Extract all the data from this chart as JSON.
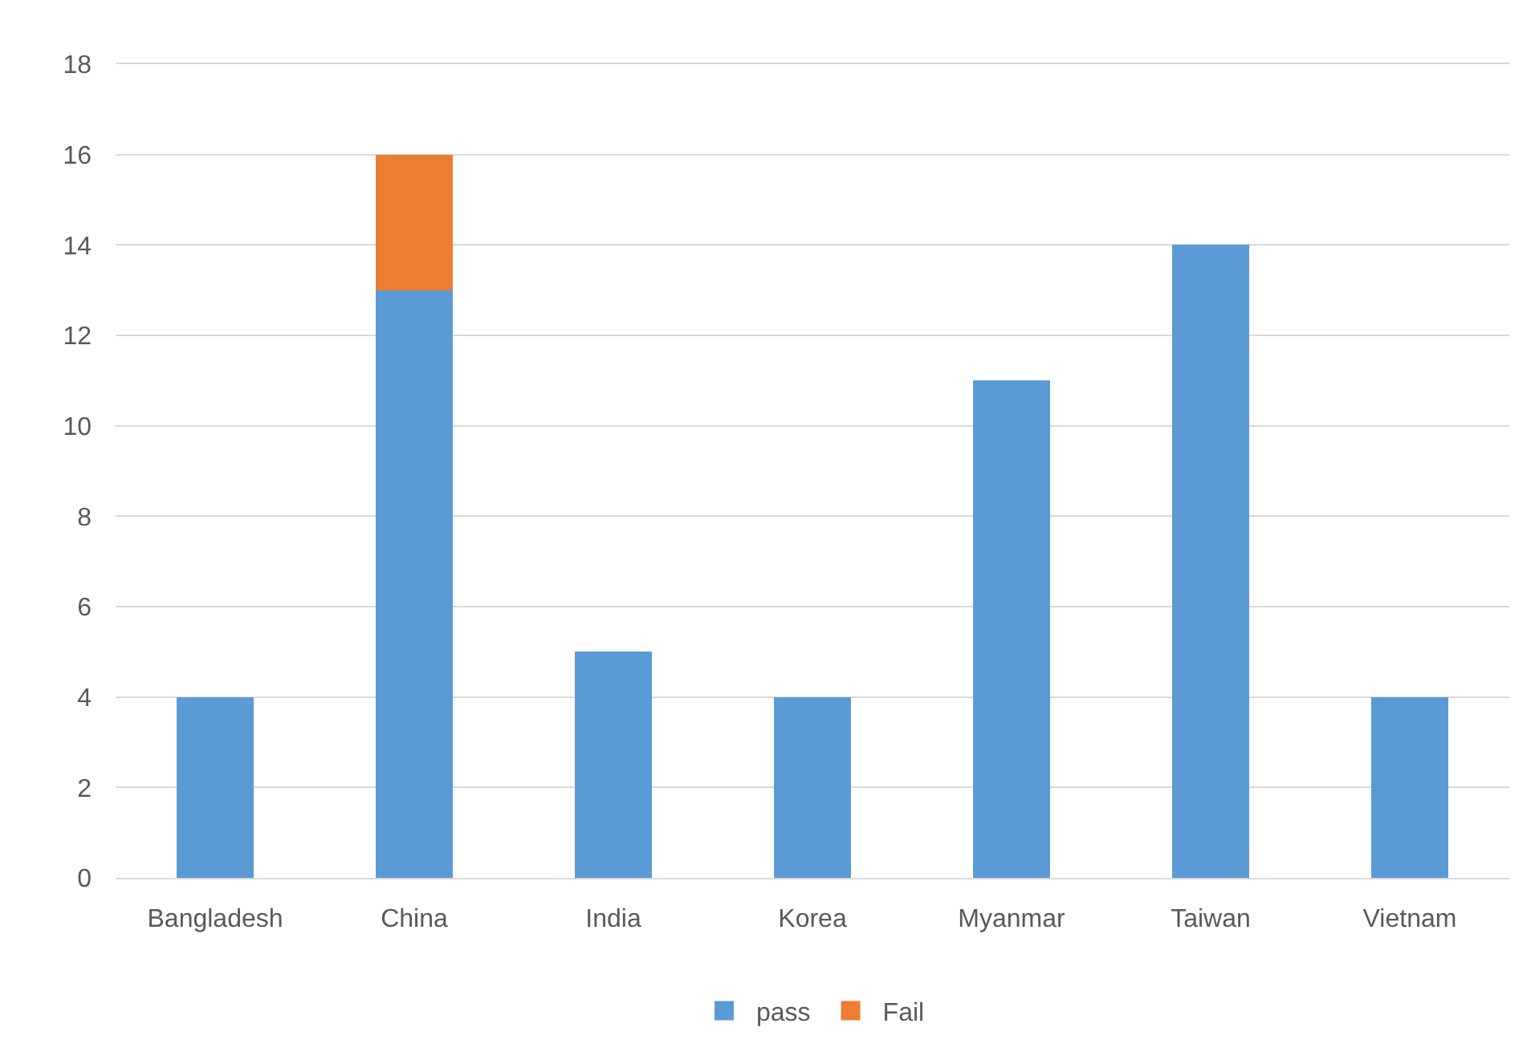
{
  "chart_data": {
    "type": "bar",
    "stacked": true,
    "categories": [
      "Bangladesh",
      "China",
      "India",
      "Korea",
      "Myanmar",
      "Taiwan",
      "Vietnam"
    ],
    "series": [
      {
        "name": "pass",
        "color": "#5b9bd5",
        "values": [
          4,
          13,
          5,
          4,
          11,
          14,
          4
        ]
      },
      {
        "name": "Fail",
        "color": "#ed7d31",
        "values": [
          null,
          3,
          null,
          null,
          null,
          null,
          null
        ]
      }
    ],
    "ylim": [
      0,
      18
    ],
    "yticks": [
      0,
      2,
      4,
      6,
      8,
      10,
      12,
      14,
      16,
      18
    ],
    "grid": "y",
    "legend": "bottom"
  }
}
